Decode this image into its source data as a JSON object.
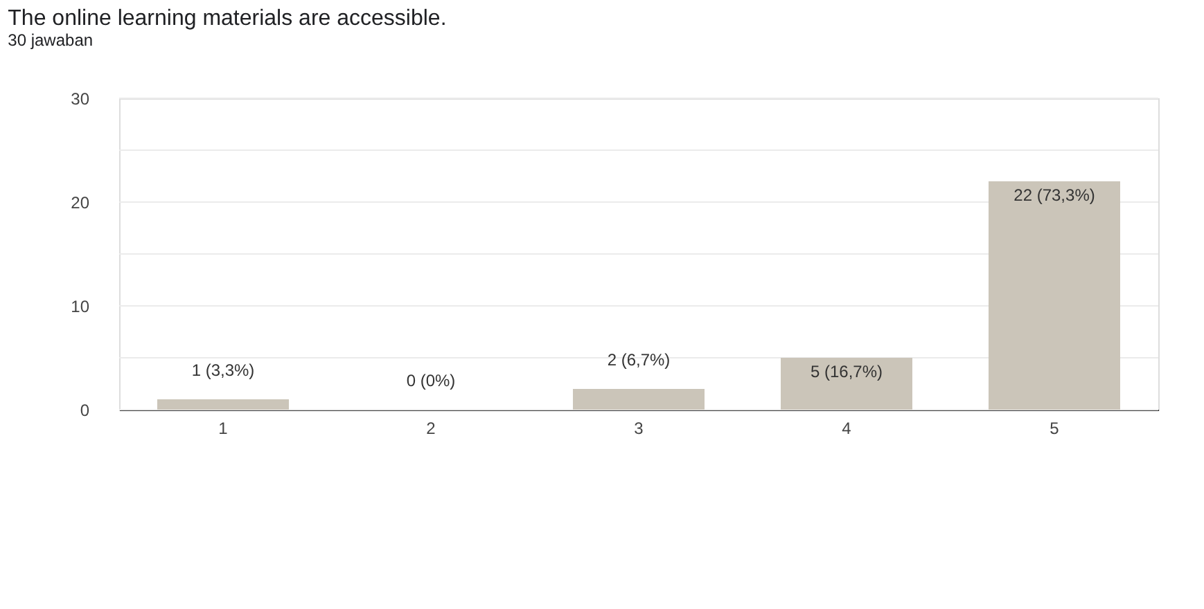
{
  "chart_data": {
    "type": "bar",
    "title": "The online learning materials are accessible.",
    "subtitle": "30 jawaban",
    "categories": [
      "1",
      "2",
      "3",
      "4",
      "5"
    ],
    "values": [
      1,
      0,
      2,
      5,
      22
    ],
    "value_labels": [
      "1 (3,3%)",
      "0 (0%)",
      "2 (6,7%)",
      "5 (16,7%)",
      "22 (73,3%)"
    ],
    "color": "#cbc5b9",
    "ylim": [
      0,
      30
    ],
    "yticks": [
      0,
      {
        "value": 5,
        "label": null
      },
      10,
      {
        "value": 15,
        "label": null
      },
      20,
      {
        "value": 25,
        "label": null
      },
      30
    ],
    "grid": true
  }
}
